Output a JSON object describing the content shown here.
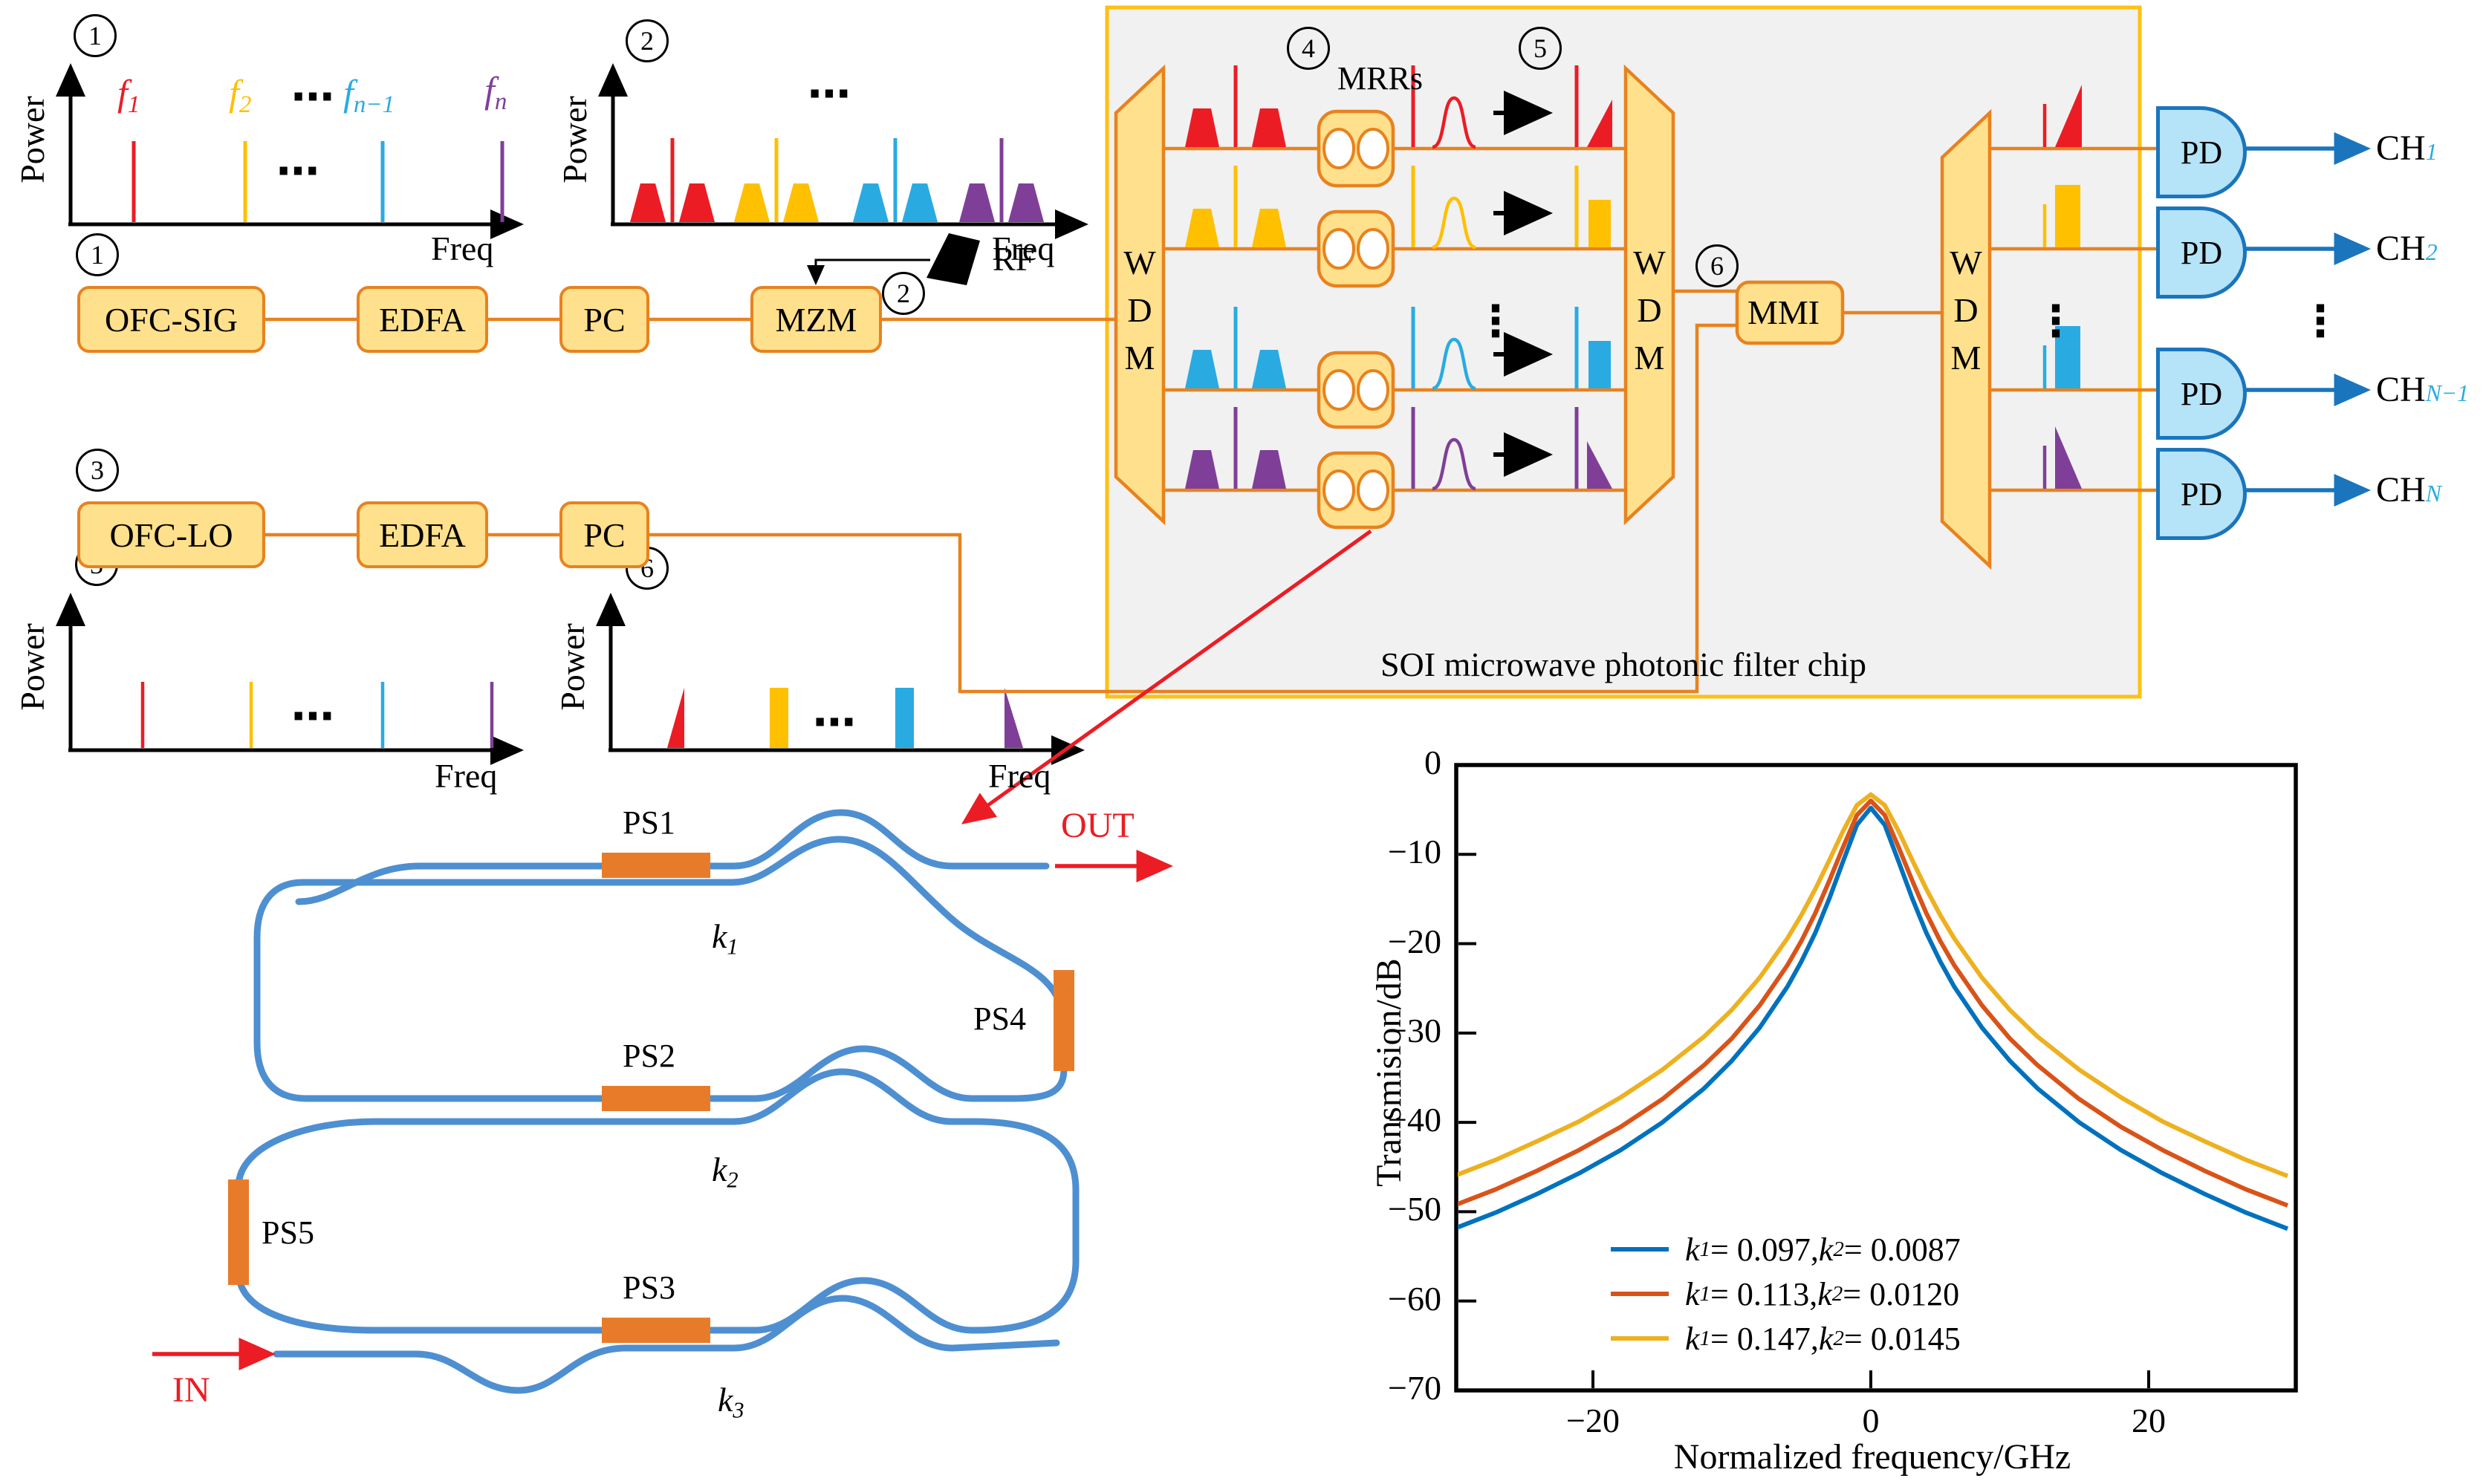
{
  "palette": {
    "connection_orange": "#E8821E",
    "box_fill": "#FFE08C",
    "box_border": "#E8821E",
    "chip_fill": "#F1F1F1",
    "chip_border": "#FFC010",
    "comb_red": "#EC1C24",
    "comb_yellow": "#FFC000",
    "comb_cyan": "#29ABE2",
    "comb_purple": "#7F3F98",
    "pd_fill": "#B5E3F7",
    "pd_border": "#1B75BC",
    "waveguide_blue": "#4E8FD1",
    "phase_shifter_orange": "#E87B2A",
    "accent_red": "#EC1C24"
  },
  "spectra": {
    "power_label": "Power",
    "freq_label": "Freq",
    "h_ellipsis": "⋯",
    "v_ellipsis": "⋮",
    "panel1": {
      "num": "1",
      "f_labels": [
        {
          "base": "f",
          "sub": "1"
        },
        {
          "base": "f",
          "sub": "2"
        },
        {
          "base": "f",
          "sub": "n−1"
        },
        {
          "base": "f",
          "sub": "n"
        }
      ]
    },
    "panel2": {
      "num": "2"
    },
    "panel3": {
      "num": "3"
    },
    "panel6": {
      "num": "6"
    }
  },
  "blocks": {
    "ofc_sig": "OFC-SIG",
    "ofc_lo": "OFC-LO",
    "edfa": "EDFA",
    "pc": "PC",
    "mzm": "MZM",
    "rf": "RF",
    "mmi": "MMI",
    "mrrs": "MRRs",
    "pd": "PD",
    "wdm_letters": [
      "W",
      "D",
      "M"
    ],
    "chip_caption": "SOI microwave photonic filter chip"
  },
  "circled": {
    "n1": "1",
    "n2": "2",
    "n3": "3",
    "n4": "4",
    "n5": "5",
    "n6": "6"
  },
  "channels": [
    {
      "base": "CH",
      "sub": "1"
    },
    {
      "base": "CH",
      "sub": "2"
    },
    {
      "base": "CH",
      "sub": "N−1"
    },
    {
      "base": "CH",
      "sub": "N"
    }
  ],
  "ring": {
    "ps1": "PS1",
    "ps2": "PS2",
    "ps3": "PS3",
    "ps4": "PS4",
    "ps5": "PS5",
    "k1": {
      "base": "k",
      "sub": "1"
    },
    "k2": {
      "base": "k",
      "sub": "2"
    },
    "k3": {
      "base": "k",
      "sub": "3"
    },
    "in_label": "IN",
    "out_label": "OUT"
  },
  "chart_data": {
    "type": "line",
    "title": "",
    "xlabel": "Normalized frequency/GHz",
    "ylabel": "Transmision/dB",
    "xlim": [
      -30,
      30
    ],
    "ylim": [
      -70,
      0
    ],
    "grid": false,
    "legend_position": "lower center",
    "xticks": [
      {
        "v": -20,
        "label": "−20"
      },
      {
        "v": 0,
        "label": "0"
      },
      {
        "v": 20,
        "label": "20"
      }
    ],
    "yticks": [
      {
        "v": 0,
        "label": "0"
      },
      {
        "v": -10,
        "label": "−10"
      },
      {
        "v": -20,
        "label": "−20"
      },
      {
        "v": -30,
        "label": "−30"
      },
      {
        "v": -40,
        "label": "−40"
      },
      {
        "v": -50,
        "label": "−50"
      },
      {
        "v": -60,
        "label": "−60"
      },
      {
        "v": -70,
        "label": "−70"
      }
    ],
    "series": [
      {
        "name": "k1 = 0.097, k2 = 0.0087",
        "color": "#0072BD",
        "legend_parts": [
          "k",
          "1",
          " = 0.097,  ",
          "k",
          "2",
          " = 0.0087"
        ],
        "symmetric": true,
        "points_half": [
          [
            0,
            -4.8
          ],
          [
            1,
            -6.7
          ],
          [
            2,
            -10.8
          ],
          [
            3,
            -15.0
          ],
          [
            4,
            -18.8
          ],
          [
            5,
            -22.0
          ],
          [
            6,
            -24.8
          ],
          [
            8,
            -29.4
          ],
          [
            10,
            -33.1
          ],
          [
            12,
            -36.2
          ],
          [
            15,
            -40.0
          ],
          [
            18,
            -43.1
          ],
          [
            21,
            -45.7
          ],
          [
            24,
            -48.0
          ],
          [
            27,
            -50.1
          ],
          [
            30,
            -51.9
          ]
        ]
      },
      {
        "name": "k1 = 0.113, k2 = 0.0120",
        "color": "#D95319",
        "legend_parts": [
          "k",
          "1",
          " = 0.113,  ",
          "k",
          "2",
          " = 0.0120"
        ],
        "symmetric": true,
        "points_half": [
          [
            0,
            -4.0
          ],
          [
            1,
            -5.6
          ],
          [
            2,
            -9.2
          ],
          [
            3,
            -13.0
          ],
          [
            4,
            -16.6
          ],
          [
            5,
            -19.7
          ],
          [
            6,
            -22.4
          ],
          [
            8,
            -26.9
          ],
          [
            10,
            -30.6
          ],
          [
            12,
            -33.6
          ],
          [
            15,
            -37.4
          ],
          [
            18,
            -40.5
          ],
          [
            21,
            -43.1
          ],
          [
            24,
            -45.4
          ],
          [
            27,
            -47.5
          ],
          [
            30,
            -49.3
          ]
        ]
      },
      {
        "name": "k1 = 0.147, k2 = 0.0145",
        "color": "#EDB120",
        "legend_parts": [
          "k",
          "1",
          " = 0.147,  ",
          "k",
          "2",
          " = 0.0145"
        ],
        "symmetric": true,
        "points_half": [
          [
            0,
            -3.3
          ],
          [
            1,
            -4.5
          ],
          [
            2,
            -7.4
          ],
          [
            3,
            -10.7
          ],
          [
            4,
            -13.9
          ],
          [
            5,
            -16.8
          ],
          [
            6,
            -19.4
          ],
          [
            8,
            -23.8
          ],
          [
            10,
            -27.4
          ],
          [
            12,
            -30.4
          ],
          [
            15,
            -34.1
          ],
          [
            18,
            -37.2
          ],
          [
            21,
            -39.9
          ],
          [
            24,
            -42.1
          ],
          [
            27,
            -44.2
          ],
          [
            30,
            -46.0
          ]
        ]
      }
    ]
  }
}
